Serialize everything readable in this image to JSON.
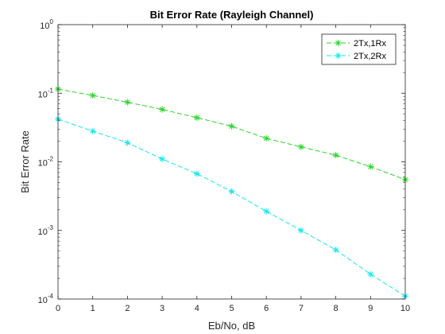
{
  "chart_data": {
    "type": "line",
    "title": "Bit Error Rate (Rayleigh Channel)",
    "xlabel": "Eb/No, dB",
    "ylabel": "Bit Error Rate",
    "x": [
      0,
      1,
      2,
      3,
      4,
      5,
      6,
      7,
      8,
      9,
      10
    ],
    "xlim": [
      0,
      10
    ],
    "ylim": [
      0.0001,
      1
    ],
    "yscale": "log",
    "x_ticks": [
      "0",
      "1",
      "2",
      "3",
      "4",
      "5",
      "6",
      "7",
      "8",
      "9",
      "10"
    ],
    "y_ticks": [
      {
        "value": 1,
        "base": "10",
        "exp": "0"
      },
      {
        "value": 0.1,
        "base": "10",
        "exp": "-1"
      },
      {
        "value": 0.01,
        "base": "10",
        "exp": "-2"
      },
      {
        "value": 0.001,
        "base": "10",
        "exp": "-3"
      },
      {
        "value": 0.0001,
        "base": "10",
        "exp": "-4"
      }
    ],
    "grid": false,
    "legend_position": "top-right",
    "series": [
      {
        "name": "2Tx,1Rx",
        "color": "#2ad42a",
        "line_style": "dashed",
        "marker": "asterisk",
        "values": [
          0.115,
          0.093,
          0.074,
          0.058,
          0.044,
          0.033,
          0.022,
          0.0165,
          0.0125,
          0.0085,
          0.0055
        ]
      },
      {
        "name": "2Tx,2Rx",
        "color": "#17e6e6",
        "line_style": "dashed",
        "marker": "asterisk",
        "values": [
          0.042,
          0.028,
          0.019,
          0.011,
          0.0067,
          0.0037,
          0.0019,
          0.001,
          0.00052,
          0.00023,
          0.00011
        ]
      }
    ]
  }
}
